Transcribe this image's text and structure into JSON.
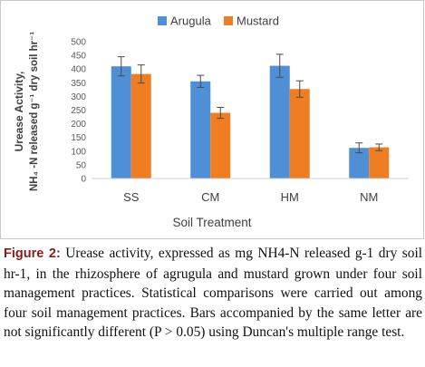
{
  "chart_data": {
    "type": "bar",
    "categories": [
      "SS",
      "CM",
      "HM",
      "NM"
    ],
    "series": [
      {
        "name": "Arugula",
        "color": "#4f8fd6",
        "values": [
          410,
          355,
          412,
          112
        ],
        "errors": [
          35,
          22,
          42,
          18
        ]
      },
      {
        "name": "Mustard",
        "color": "#ef7d22",
        "values": [
          382,
          240,
          327,
          114
        ],
        "errors": [
          33,
          20,
          30,
          12
        ]
      }
    ],
    "xlabel": "Soil Treatment",
    "ylabel_line1": "Urease Activity,",
    "ylabel_line2": "NH₄ -N released g⁻¹ dry soil hr⁻¹",
    "ylim": [
      0,
      500
    ],
    "yticks": [
      0,
      50,
      100,
      150,
      200,
      250,
      300,
      350,
      400,
      450,
      500
    ],
    "legend_position": "top-right",
    "grid": false
  },
  "caption": {
    "label": "Figure 2:",
    "text": "Urease activity, expressed as mg NH4-N released g-1 dry soil hr-1, in the rhizosphere of agrugula and mustard grown under four soil management practices. Statistical comparisons were carried out among four soil management practices. Bars accompanied by the same letter are not significantly different (P > 0.05) using Duncan's multiple range test."
  }
}
